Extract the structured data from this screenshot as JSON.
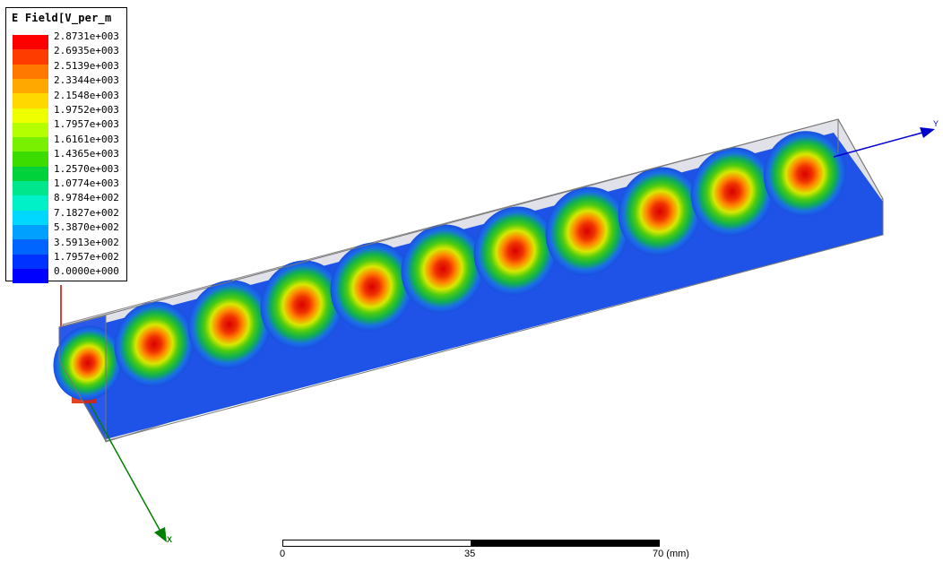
{
  "legend": {
    "title": "E Field[V_per_m",
    "entries": [
      {
        "value": "2.8731e+003",
        "color": "#ff0000"
      },
      {
        "value": "2.6935e+003",
        "color": "#ff3c00"
      },
      {
        "value": "2.5139e+003",
        "color": "#ff7800"
      },
      {
        "value": "2.3344e+003",
        "color": "#ffa800"
      },
      {
        "value": "2.1548e+003",
        "color": "#ffd800"
      },
      {
        "value": "1.9752e+003",
        "color": "#eeff00"
      },
      {
        "value": "1.7957e+003",
        "color": "#b4ff00"
      },
      {
        "value": "1.6161e+003",
        "color": "#78f000"
      },
      {
        "value": "1.4365e+003",
        "color": "#3cdc00"
      },
      {
        "value": "1.2570e+003",
        "color": "#00d23c"
      },
      {
        "value": "1.0774e+003",
        "color": "#00e68c"
      },
      {
        "value": "8.9784e+002",
        "color": "#00f0c8"
      },
      {
        "value": "7.1827e+002",
        "color": "#00d8ff"
      },
      {
        "value": "5.3870e+002",
        "color": "#00a0ff"
      },
      {
        "value": "3.5913e+002",
        "color": "#0064ff"
      },
      {
        "value": "1.7957e+002",
        "color": "#0032ff"
      },
      {
        "value": "0.0000e+000",
        "color": "#0000ff"
      }
    ]
  },
  "axes": {
    "y_label": "Y",
    "x_label": "X"
  },
  "scale_bar": {
    "labels": [
      "0",
      "35",
      "70 (mm)"
    ]
  },
  "colors": {
    "field_peak": "#ff0000",
    "field_low": "#0032ff",
    "box_outline": "#888888",
    "y_axis": "#0000cc",
    "x_axis": "#008000",
    "z_axis": "#cc0000"
  }
}
